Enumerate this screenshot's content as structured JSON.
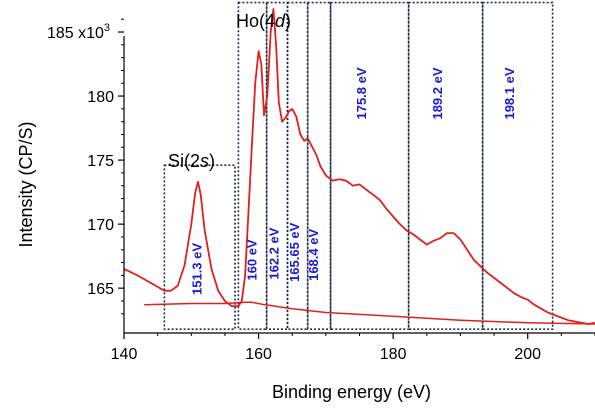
{
  "chart_data": {
    "type": "line",
    "xlabel": "Binding energy (eV)",
    "ylabel": "Intensity (CP/S)",
    "xlim": [
      140,
      210
    ],
    "ylim": [
      161.5,
      187.5
    ],
    "x_ticks": [
      140,
      160,
      180,
      200
    ],
    "x_tick_labels": [
      "140",
      "160",
      "180",
      "200"
    ],
    "y_ticks": [
      165,
      170,
      175,
      180,
      185
    ],
    "y_tick_labels": [
      "165",
      "170",
      "175",
      "180",
      "185 x10³"
    ],
    "grid": false,
    "series": [
      {
        "color": "#e0201b",
        "x": [
          140,
          142,
          144,
          146,
          147,
          148,
          149,
          150,
          150.6,
          151,
          151.4,
          152,
          153,
          154,
          155,
          156,
          157,
          157.5,
          158,
          158.5,
          159,
          159.5,
          160,
          160.4,
          160.8,
          161.3,
          161.8,
          162.2,
          162.6,
          163,
          163.5,
          164,
          164.5,
          165,
          165.6,
          166.2,
          166.8,
          167.3,
          168,
          168.6,
          169.2,
          170,
          171,
          172,
          173,
          174,
          175,
          176,
          177,
          178,
          179,
          180,
          181,
          182,
          183,
          184,
          185,
          186,
          187,
          188,
          189,
          190,
          191,
          192,
          193,
          194,
          195,
          196,
          197,
          198,
          199,
          200,
          201,
          202,
          203,
          204,
          205,
          206,
          207,
          208,
          209,
          210
        ],
        "y": [
          166.5,
          166,
          165.4,
          164.8,
          164.8,
          165.2,
          166.8,
          170,
          172.5,
          173.3,
          172.3,
          169.5,
          166.5,
          164.8,
          164,
          163.6,
          163.6,
          164,
          166,
          171,
          176,
          181,
          183.5,
          182.5,
          178.5,
          180,
          185,
          186.8,
          184,
          179.5,
          178,
          178.3,
          178.8,
          179,
          178.4,
          177,
          176.5,
          176.7,
          176,
          175.4,
          174.5,
          173.8,
          173.4,
          173.5,
          173.4,
          173,
          173.1,
          172.7,
          172.3,
          171.9,
          171.2,
          170.6,
          170,
          169.5,
          169.2,
          168.8,
          168.4,
          168.7,
          168.9,
          169.3,
          169.3,
          168.8,
          168,
          167.2,
          166.7,
          166.2,
          165.8,
          165.4,
          165,
          164.6,
          164.3,
          164.1,
          163.7,
          163.4,
          163.1,
          162.9,
          162.7,
          162.5,
          162.4,
          162.3,
          162.2,
          162.3
        ]
      },
      {
        "color": "#e0201b",
        "x": [
          143,
          150,
          155,
          158,
          159,
          161,
          165,
          170,
          180,
          190,
          200,
          210
        ],
        "y": [
          163.7,
          163.8,
          163.8,
          163.9,
          163.9,
          163.7,
          163.4,
          163.1,
          162.8,
          162.5,
          162.3,
          162.2
        ]
      }
    ],
    "boxes": [
      {
        "x0": 146,
        "x1": 156.5,
        "y0": 161.8,
        "y1": 174.6
      },
      {
        "x0": 157,
        "x1": 161.2,
        "y0": 161.8,
        "y1": 187.3
      },
      {
        "x0": 161.2,
        "x1": 164.3,
        "y0": 161.8,
        "y1": 187.3
      },
      {
        "x0": 164.3,
        "x1": 167.3,
        "y0": 161.8,
        "y1": 187.3
      },
      {
        "x0": 167.3,
        "x1": 170.7,
        "y0": 161.8,
        "y1": 187.3
      },
      {
        "x0": 170.7,
        "x1": 182.3,
        "y0": 161.8,
        "y1": 187.3
      },
      {
        "x0": 182.3,
        "x1": 193.3,
        "y0": 161.8,
        "y1": 187.3
      },
      {
        "x0": 193.3,
        "x1": 203.7,
        "y0": 161.8,
        "y1": 187.3
      }
    ],
    "peak_labels": [
      {
        "text": "151.3 eV",
        "x": 151.5,
        "y": 166.5
      },
      {
        "text": "160 eV",
        "x": 159.7,
        "y": 167.2
      },
      {
        "text": "162.2 eV",
        "x": 163.0,
        "y": 167.7
      },
      {
        "text": "165.65 eV",
        "x": 166.0,
        "y": 167.8
      },
      {
        "text": "168.4 eV",
        "x": 168.8,
        "y": 167.6
      },
      {
        "text": "175.8 eV",
        "x": 176.0,
        "y": 180.2
      },
      {
        "text": "189.2 eV",
        "x": 187.3,
        "y": 180.2
      },
      {
        "text": "198.1 eV",
        "x": 198.0,
        "y": 180.2
      }
    ],
    "group_labels": {
      "si_2s": {
        "prefix": "Si(2",
        "italic": "s",
        "suffix": ")"
      },
      "ho_4d": {
        "prefix": "Ho(4",
        "italic": "d",
        "suffix": ")"
      }
    }
  }
}
